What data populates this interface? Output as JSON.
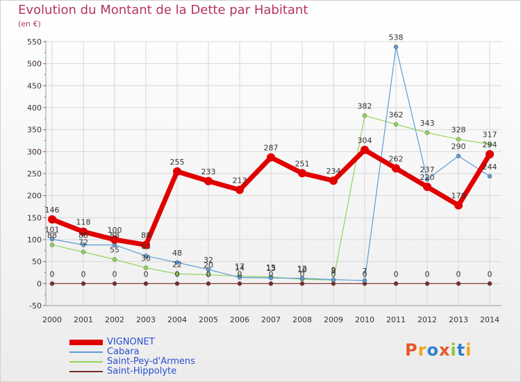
{
  "chart_data": {
    "type": "line",
    "title": "Evolution du Montant de la Dette par Habitant",
    "subtitle": "(en €)",
    "categories": [
      "2000",
      "2001",
      "2002",
      "2003",
      "2004",
      "2005",
      "2006",
      "2007",
      "2008",
      "2009",
      "2010",
      "2011",
      "2012",
      "2013",
      "2014"
    ],
    "ylim": [
      -50,
      550
    ],
    "yticks": [
      -50,
      0,
      50,
      100,
      150,
      200,
      250,
      300,
      350,
      400,
      450,
      500,
      550
    ],
    "grid": true,
    "legend_position": "bottom-left",
    "series": [
      {
        "name": "VIGNONET",
        "color": "#e00000",
        "width": 7,
        "values": [
          146,
          118,
          100,
          88,
          255,
          233,
          213,
          287,
          251,
          234,
          304,
          262,
          220,
          178,
          294
        ]
      },
      {
        "name": "Cabara",
        "color": "#5b9bd5",
        "width": 1.2,
        "values": [
          101,
          88,
          88,
          63,
          48,
          32,
          14,
          13,
          12,
          9,
          7,
          538,
          237,
          290,
          244
        ]
      },
      {
        "name": "Saint-Pey-d'Armens",
        "color": "#8fd45a",
        "width": 1.2,
        "values": [
          88,
          72,
          55,
          36,
          22,
          20,
          17,
          15,
          10,
          8,
          382,
          362,
          343,
          328,
          317
        ]
      },
      {
        "name": "Saint-Hippolyte",
        "color": "#7a2a2a",
        "width": 1.2,
        "values": [
          0,
          0,
          0,
          0,
          0,
          0,
          0,
          0,
          0,
          0,
          0,
          0,
          0,
          0,
          0
        ]
      }
    ]
  },
  "logo_text": "Proxiti",
  "logo_colors": [
    "#e8562a",
    "#f0a81a",
    "#2f7fd3",
    "#e8562a",
    "#8cc63f",
    "#2f7fd3",
    "#f0a81a"
  ]
}
